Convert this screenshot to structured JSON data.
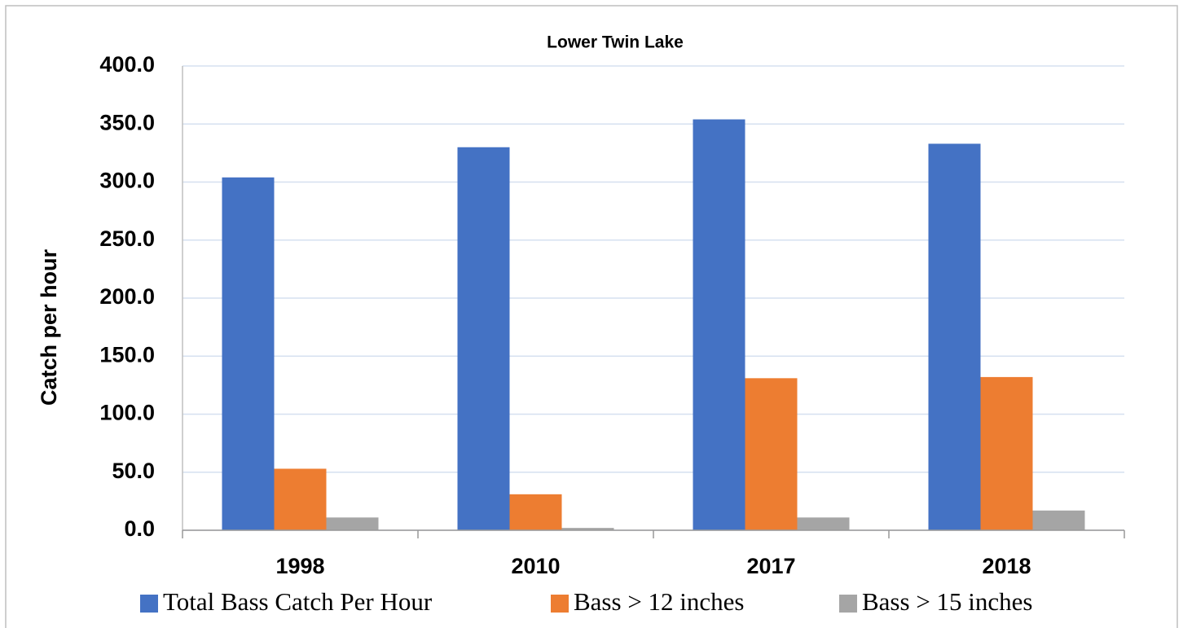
{
  "chart_data": {
    "type": "bar",
    "title": "Lower Twin Lake",
    "y_label": "Catch per hour",
    "categories": [
      "1998",
      "2010",
      "2017",
      "2018"
    ],
    "series": [
      {
        "name": "Total Bass Catch Per Hour",
        "color": "#4472c4",
        "values": [
          304,
          330,
          354,
          333
        ]
      },
      {
        "name": "Bass > 12 inches",
        "color": "#ed7d31",
        "values": [
          53,
          31,
          131,
          132
        ]
      },
      {
        "name": "Bass > 15 inches",
        "color": "#a5a5a5",
        "values": [
          11,
          2,
          11,
          17
        ]
      }
    ],
    "ylim": [
      0,
      400
    ],
    "yticks": [
      {
        "value": 0,
        "label": "0.0"
      },
      {
        "value": 50,
        "label": "50.0"
      },
      {
        "value": 100,
        "label": "100.0"
      },
      {
        "value": 150,
        "label": "150.0"
      },
      {
        "value": 200,
        "label": "200.0"
      },
      {
        "value": 250,
        "label": "250.0"
      },
      {
        "value": 300,
        "label": "300.0"
      },
      {
        "value": 350,
        "label": "350.0"
      },
      {
        "value": 400,
        "label": "400.0"
      }
    ],
    "grid": true,
    "legend": "bottom"
  }
}
